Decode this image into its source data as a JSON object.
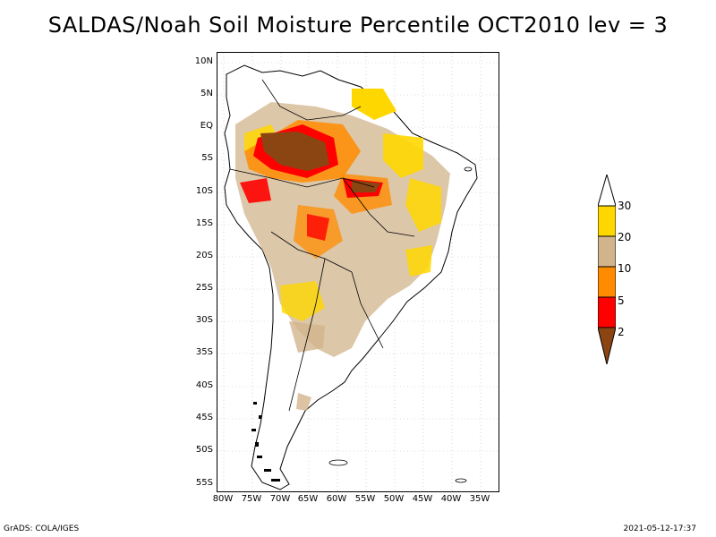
{
  "title": "SALDAS/Noah Soil Moisture Percentile OCT2010 lev = 3",
  "map": {
    "lat_labels": [
      "10N",
      "5N",
      "EQ",
      "5S",
      "10S",
      "15S",
      "20S",
      "25S",
      "30S",
      "35S",
      "40S",
      "45S",
      "50S",
      "55S"
    ],
    "lon_labels": [
      "80W",
      "75W",
      "70W",
      "65W",
      "60W",
      "55W",
      "50W",
      "45W",
      "40W",
      "35W"
    ]
  },
  "colorbar": {
    "labels": [
      "30",
      "20",
      "10",
      "5",
      "2"
    ],
    "colors": [
      "#ffffff",
      "#ffd700",
      "#d2b48c",
      "#ff8c00",
      "#ff0000",
      "#8b4513"
    ]
  },
  "footer": {
    "left": "GrADS: COLA/IGES",
    "right": "2021-05-12-17:37"
  }
}
